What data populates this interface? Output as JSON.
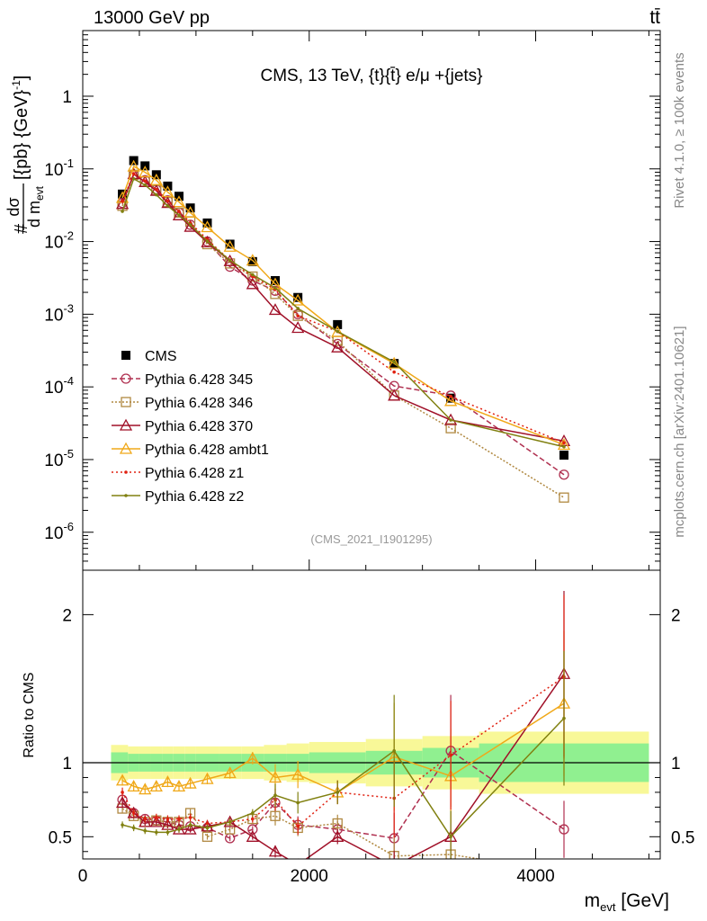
{
  "header": {
    "left": "13000 GeV pp",
    "right": "tt̄"
  },
  "side_labels": {
    "rivet": "Rivet 4.1.0, ≥ 100k events",
    "source": "mcplots.cern.ch [arXiv:2401.10621]"
  },
  "colors": {
    "cms": "#000000",
    "p345": "#b03050",
    "p346": "#b08840",
    "p370": "#a01028",
    "ambt1": "#f0a818",
    "z1": "#e02010",
    "z2": "#808010",
    "band_inner": "#90f090",
    "band_outer": "#f8f898"
  },
  "chart_data": [
    {
      "type": "line",
      "title": "CMS, 13 TeV, {t}{t̄} e/μ +{jets}",
      "analysis_id": "(CMS_2021_I1901295)",
      "ylabel": "# dσ / d m_evt [{pb} {GeV}^-1]",
      "yscale": "log",
      "ylim": [
        3e-07,
        8
      ],
      "xlim": [
        0,
        5100
      ],
      "ytick_labels": [
        "10^-6",
        "10^-5",
        "10^-4",
        "10^-3",
        "10^-2",
        "10^-1",
        "1"
      ],
      "x": [
        350,
        450,
        550,
        650,
        750,
        850,
        950,
        1100,
        1300,
        1500,
        1700,
        1900,
        2250,
        2750,
        3250,
        4250
      ],
      "series": [
        {
          "name": "CMS",
          "key": "cms",
          "marker": "square-filled",
          "values": [
            0.045,
            0.13,
            0.11,
            0.083,
            0.058,
            0.042,
            0.029,
            0.018,
            0.0092,
            0.0053,
            0.0029,
            0.0017,
            0.00072,
            0.00021,
            7e-05,
            1.15e-05
          ]
        },
        {
          "name": "Pythia 6.428 345",
          "key": "p345",
          "marker": "circle-open",
          "dash": "6,3",
          "values": [
            0.034,
            0.083,
            0.07,
            0.052,
            0.037,
            0.025,
            0.017,
            0.01,
            0.0045,
            0.0029,
            0.0021,
            0.001,
            0.00039,
            0.000103,
            7.6e-05,
            6.2e-06
          ]
        },
        {
          "name": "Pythia 6.428 346",
          "key": "p346",
          "marker": "square-open",
          "dash": "2,2",
          "values": [
            0.031,
            0.083,
            0.067,
            0.051,
            0.035,
            0.025,
            0.019,
            0.0092,
            0.005,
            0.0033,
            0.0019,
            0.00095,
            0.00043,
            7.6e-05,
            2.7e-05,
            3e-06
          ]
        },
        {
          "name": "Pythia 6.428 370",
          "key": "p370",
          "marker": "triangle-open",
          "dash": "",
          "values": [
            0.033,
            0.085,
            0.066,
            0.05,
            0.034,
            0.023,
            0.016,
            0.0098,
            0.0054,
            0.0026,
            0.00115,
            0.00065,
            0.00035,
            7.6e-05,
            3.5e-05,
            1.8e-05
          ]
        },
        {
          "name": "Pythia 6.428 ambt1",
          "key": "ambt1",
          "marker": "triangle-open",
          "dash": "",
          "values": [
            0.04,
            0.108,
            0.09,
            0.07,
            0.048,
            0.035,
            0.025,
            0.0158,
            0.0085,
            0.0055,
            0.0026,
            0.00155,
            0.00057,
            0.00021,
            6.4e-05,
            1.6e-05
          ]
        },
        {
          "name": "Pythia 6.428 z1",
          "key": "z1",
          "marker": "dot",
          "dash": "2,3",
          "values": [
            0.036,
            0.086,
            0.068,
            0.052,
            0.036,
            0.026,
            0.018,
            0.0107,
            0.0055,
            0.0033,
            0.0022,
            0.00095,
            0.00058,
            0.00016,
            7.4e-05,
            1.7e-05
          ]
        },
        {
          "name": "Pythia 6.428 z2",
          "key": "z2",
          "marker": "dot",
          "dash": "",
          "values": [
            0.026,
            0.073,
            0.06,
            0.044,
            0.031,
            0.023,
            0.017,
            0.0101,
            0.0055,
            0.0035,
            0.0023,
            0.0012,
            0.00058,
            0.00022,
            3.5e-05,
            1.5e-05
          ]
        }
      ]
    },
    {
      "type": "line",
      "ylabel": "Ratio to CMS",
      "xlabel": "m_evt [GeV]",
      "ylim": [
        0.35,
        2.3
      ],
      "xlim": [
        0,
        5100
      ],
      "ytick_labels": [
        "0.5",
        "1",
        "2"
      ],
      "xtick_labels": [
        "0",
        "2000",
        "4000"
      ],
      "band": {
        "edges": [
          250,
          400,
          500,
          600,
          700,
          800,
          900,
          1000,
          1200,
          1400,
          1600,
          1800,
          2000,
          2500,
          3000,
          3500,
          5000
        ],
        "inner": [
          0.07,
          0.06,
          0.06,
          0.06,
          0.06,
          0.06,
          0.06,
          0.06,
          0.06,
          0.06,
          0.06,
          0.06,
          0.07,
          0.08,
          0.1,
          0.13
        ],
        "outer": [
          0.12,
          0.11,
          0.11,
          0.11,
          0.11,
          0.11,
          0.11,
          0.11,
          0.11,
          0.11,
          0.12,
          0.13,
          0.14,
          0.16,
          0.18,
          0.21
        ]
      },
      "series": [
        {
          "key": "p345",
          "values": [
            0.75,
            0.66,
            0.62,
            0.61,
            0.6,
            0.58,
            0.57,
            0.56,
            0.49,
            0.55,
            0.73,
            0.58,
            0.55,
            0.49,
            1.08,
            0.55
          ]
        },
        {
          "key": "p346",
          "values": [
            0.69,
            0.64,
            0.6,
            0.61,
            0.6,
            0.6,
            0.66,
            0.5,
            0.55,
            0.62,
            0.64,
            0.56,
            0.59,
            0.37,
            0.38,
            0.26
          ]
        },
        {
          "key": "p370",
          "values": [
            0.73,
            0.66,
            0.6,
            0.6,
            0.58,
            0.55,
            0.55,
            0.57,
            0.6,
            0.5,
            0.4,
            0.31,
            0.5,
            0.3,
            0.5,
            1.6
          ]
        },
        {
          "key": "ambt1",
          "values": [
            0.88,
            0.84,
            0.82,
            0.84,
            0.87,
            0.84,
            0.86,
            0.89,
            0.93,
            1.03,
            0.9,
            0.92,
            0.8,
            1.04,
            0.91,
            1.4
          ]
        },
        {
          "key": "z1",
          "values": [
            0.8,
            0.66,
            0.62,
            0.63,
            0.62,
            0.62,
            0.63,
            0.59,
            0.6,
            0.62,
            0.75,
            0.57,
            0.8,
            0.76,
            1.05,
            1.58
          ]
        },
        {
          "key": "z2",
          "values": [
            0.58,
            0.56,
            0.54,
            0.53,
            0.53,
            0.55,
            0.58,
            0.56,
            0.6,
            0.66,
            0.78,
            0.73,
            0.8,
            1.08,
            0.5,
            1.3
          ]
        }
      ]
    }
  ]
}
